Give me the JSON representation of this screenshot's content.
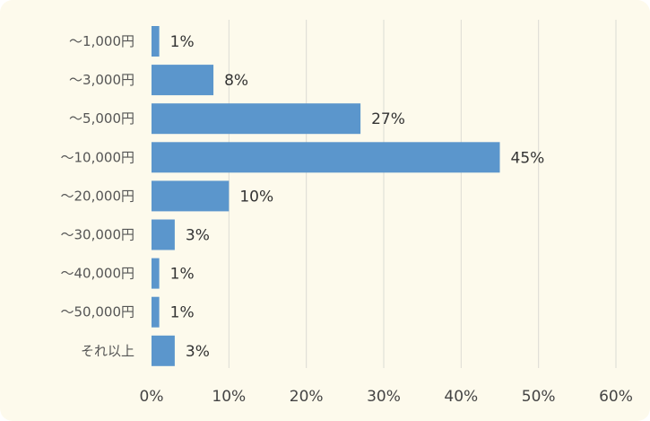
{
  "chart_data": {
    "type": "bar",
    "orientation": "horizontal",
    "categories": [
      "～1,000円",
      "～3,000円",
      "～5,000円",
      "～10,000円",
      "～20,000円",
      "～30,000円",
      "～40,000円",
      "～50,000円",
      "それ以上"
    ],
    "values": [
      1,
      8,
      27,
      45,
      10,
      3,
      1,
      1,
      3
    ],
    "value_labels": [
      "1%",
      "8%",
      "27%",
      "45%",
      "10%",
      "3%",
      "1%",
      "1%",
      "3%"
    ],
    "xlim": [
      0,
      60
    ],
    "xticks": [
      0,
      10,
      20,
      30,
      40,
      50,
      60
    ],
    "xtick_labels": [
      "0%",
      "10%",
      "20%",
      "30%",
      "40%",
      "50%",
      "60%"
    ],
    "grid": "vertical",
    "title": "",
    "xlabel": "",
    "ylabel": ""
  },
  "colors": {
    "background": "#fdfaec",
    "bar": "#5b96cc",
    "grid": "#dcdcd4"
  }
}
